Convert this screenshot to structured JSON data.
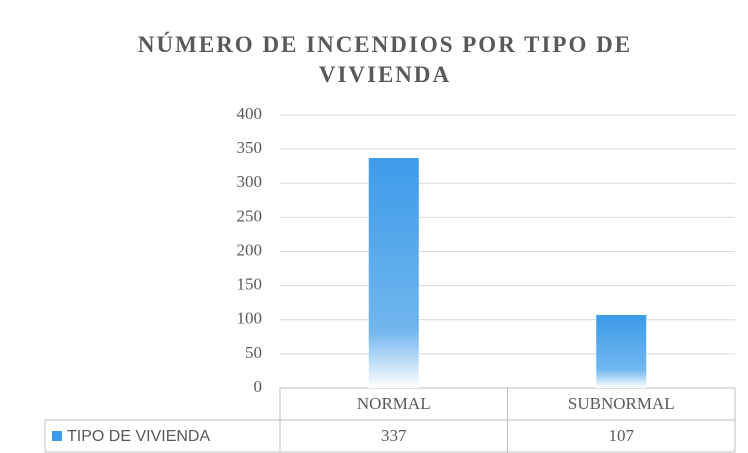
{
  "chart_data": {
    "type": "bar",
    "title": "NÚMERO DE INCENDIOS POR TIPO DE VIVIENDA",
    "categories": [
      "NORMAL",
      "SUBNORMAL"
    ],
    "series": [
      {
        "name": "TIPO DE VIVIENDA",
        "color": "#3d9be9",
        "values": [
          337,
          107
        ]
      }
    ],
    "ylim": [
      0,
      400
    ],
    "yticks": [
      0,
      50,
      100,
      150,
      200,
      250,
      300,
      350,
      400
    ],
    "grid": true
  }
}
